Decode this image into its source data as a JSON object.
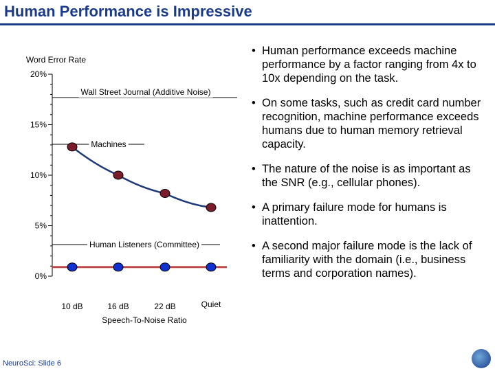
{
  "slide": {
    "title": "Human Performance is Impressive",
    "footer": "NeuroSci: Slide 6"
  },
  "bullets": [
    "Human performance exceeds machine performance by a factor ranging from 4x to 10x depending on the task.",
    "On some tasks, such as credit card number recognition, machine performance exceeds humans due to human memory retrieval capacity.",
    "The nature of the noise is as important  as the SNR (e.g., cellular phones).",
    "A primary failure mode for humans is inattention.",
    "A second major failure mode is the lack  of familiarity with the domain (i.e.,  business terms and corporation names)."
  ],
  "chart_data": {
    "type": "line",
    "title": "Wall Street Journal (Additive Noise)",
    "ylabel": "Word Error Rate",
    "xlabel": "Speech-To-Noise Ratio",
    "categories": [
      "10 dB",
      "16 dB",
      "22 dB",
      "Quiet"
    ],
    "ylim": [
      0,
      20
    ],
    "y_ticks": [
      "20%",
      "15%",
      "10%",
      "5%",
      "0%"
    ],
    "series": [
      {
        "name": "Machines",
        "values": [
          12.8,
          10.0,
          8.2,
          6.8
        ],
        "color": "#7a1c2a",
        "line_color": "#1f3a7a"
      },
      {
        "name": "Human Listeners (Committee)",
        "values": [
          0.9,
          0.9,
          0.9,
          0.9
        ],
        "color": "#1030d0",
        "line_color": "#c04a4a"
      }
    ]
  }
}
